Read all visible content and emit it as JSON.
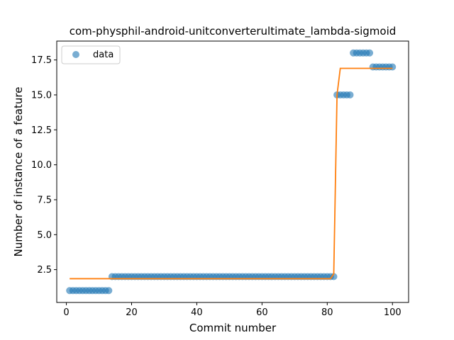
{
  "chart_data": {
    "type": "scatter",
    "title": "com-physphil-android-unitconverterultimate_lambda-sigmoid",
    "xlabel": "Commit number",
    "ylabel": "Number of instance of a feature",
    "xlim": [
      -2.95,
      104.95
    ],
    "ylim": [
      0.15,
      18.85
    ],
    "xticks": [
      0,
      20,
      40,
      60,
      80,
      100
    ],
    "xtick_labels": [
      "0",
      "20",
      "40",
      "60",
      "80",
      "100"
    ],
    "yticks": [
      2.5,
      5.0,
      7.5,
      10.0,
      12.5,
      15.0,
      17.5
    ],
    "ytick_labels": [
      "2.5",
      "5.0",
      "7.5",
      "10.0",
      "12.5",
      "15.0",
      "17.5"
    ],
    "grid": false,
    "legend": {
      "placement": "upper-left",
      "entries": [
        "data"
      ]
    },
    "colors": {
      "data": "#1f77b4",
      "fit": "#ff7f0e"
    },
    "series": [
      {
        "name": "data",
        "kind": "scatter",
        "segments": [
          {
            "x_from": 1,
            "x_to": 13,
            "y": 1
          },
          {
            "x_from": 14,
            "x_to": 82,
            "y": 2
          },
          {
            "x_from": 83,
            "x_to": 87,
            "y": 15
          },
          {
            "x_from": 88,
            "x_to": 93,
            "y": 18
          },
          {
            "x_from": 94,
            "x_to": 100,
            "y": 17
          }
        ]
      },
      {
        "kind": "line",
        "x": [
          1,
          81,
          82,
          83,
          84,
          100
        ],
        "y": [
          1.85,
          1.85,
          2.2,
          15.0,
          16.9,
          16.9
        ]
      }
    ]
  }
}
